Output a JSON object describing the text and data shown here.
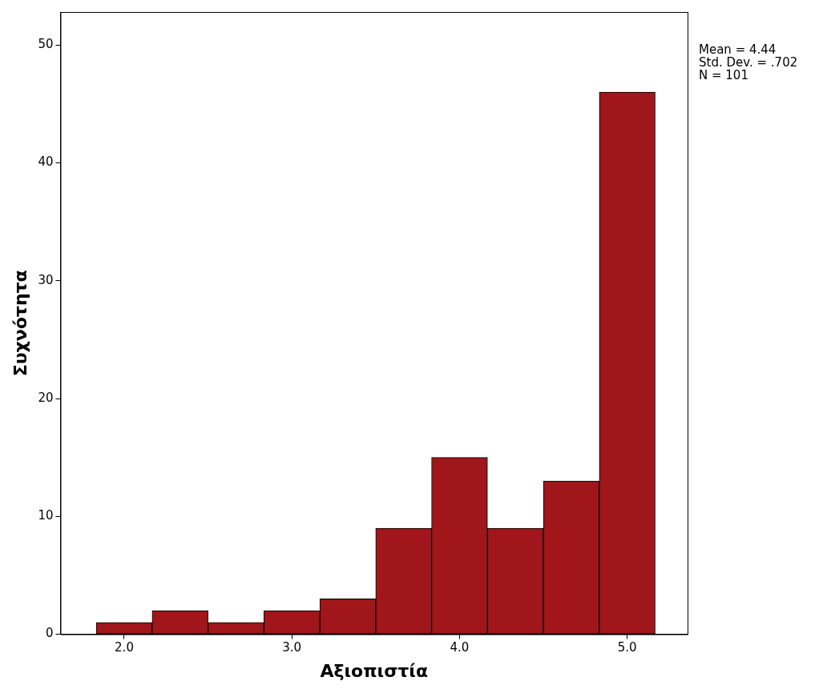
{
  "chart_data": {
    "type": "histogram",
    "xlabel": "Αξιοπιστία",
    "ylabel": "Συχνότητα",
    "bins": [
      1.8333,
      2.1667,
      2.5,
      2.8333,
      3.1667,
      3.5,
      3.8333,
      4.1667,
      4.5,
      4.8333,
      5.1667
    ],
    "values": [
      1,
      2,
      1,
      2,
      3,
      9,
      15,
      9,
      13,
      46
    ],
    "color": "#a0161a",
    "xlim": [
      1.62,
      5.36
    ],
    "ylim": [
      0,
      52.8
    ],
    "xticks": [
      {
        "value": 2,
        "label": "2.0"
      },
      {
        "value": 3,
        "label": "3.0"
      },
      {
        "value": 4,
        "label": "4.0"
      },
      {
        "value": 5,
        "label": "5.0"
      }
    ],
    "yticks": [
      0,
      10,
      20,
      30,
      40,
      50
    ],
    "grid": false,
    "annotations": [
      "Mean = 4.44",
      "Std. Dev. = .702",
      "N = 101"
    ]
  }
}
